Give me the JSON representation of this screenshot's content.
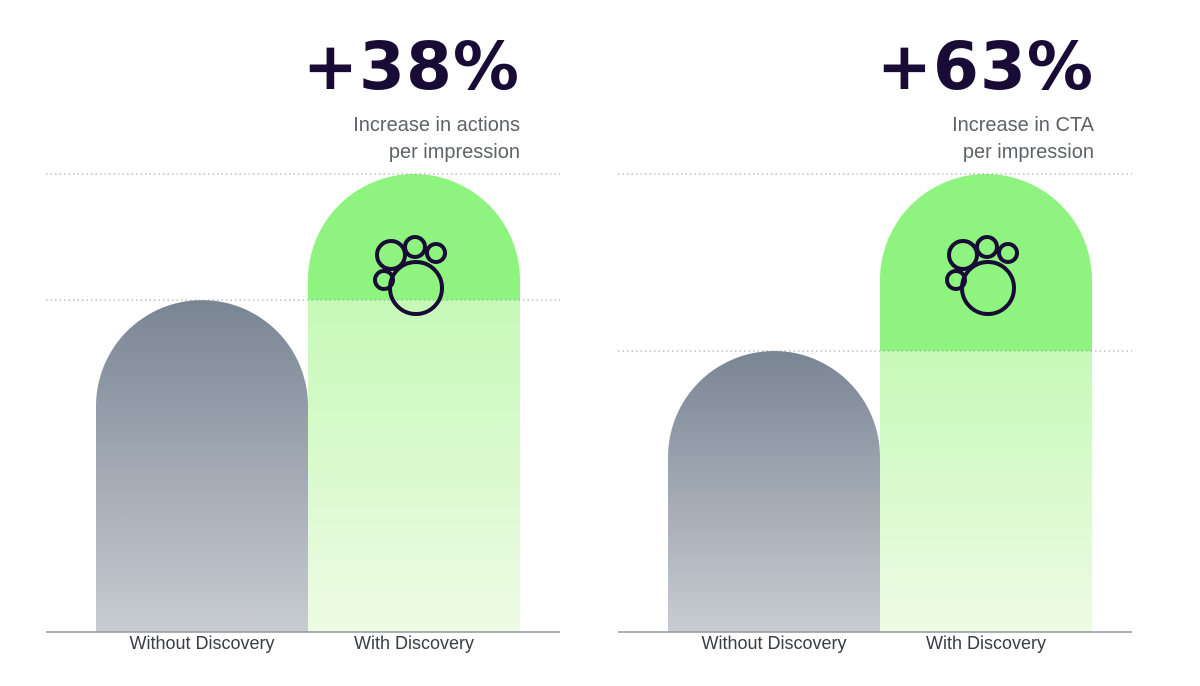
{
  "chart_data": [
    {
      "type": "bar",
      "categories": [
        "Without Discovery",
        "With Discovery"
      ],
      "values": [
        100,
        138
      ],
      "headline_value": "+38%",
      "headline_caption": [
        "Increase in actions",
        "per impression"
      ],
      "colors": {
        "without_top": "#7a8594",
        "without_bottom": "#c8ccd2",
        "with_solid": "#8ff37f",
        "with_fade_top": "#c6f9b8",
        "with_fade_bottom": "#eefbe4",
        "headline": "#180b35"
      },
      "icon": "paw-icon",
      "grid": "dotted reference lines at each bar top"
    },
    {
      "type": "bar",
      "categories": [
        "Without Discovery",
        "With Discovery"
      ],
      "values": [
        100,
        163
      ],
      "headline_value": "+63%",
      "headline_caption": [
        "Increase in CTA",
        "per impression"
      ],
      "colors": {
        "without_top": "#7a8594",
        "without_bottom": "#c8ccd2",
        "with_solid": "#8ff37f",
        "with_fade_top": "#c6f9b8",
        "with_fade_bottom": "#eefbe4",
        "headline": "#180b35"
      },
      "icon": "paw-icon",
      "grid": "dotted reference lines at each bar top"
    }
  ]
}
